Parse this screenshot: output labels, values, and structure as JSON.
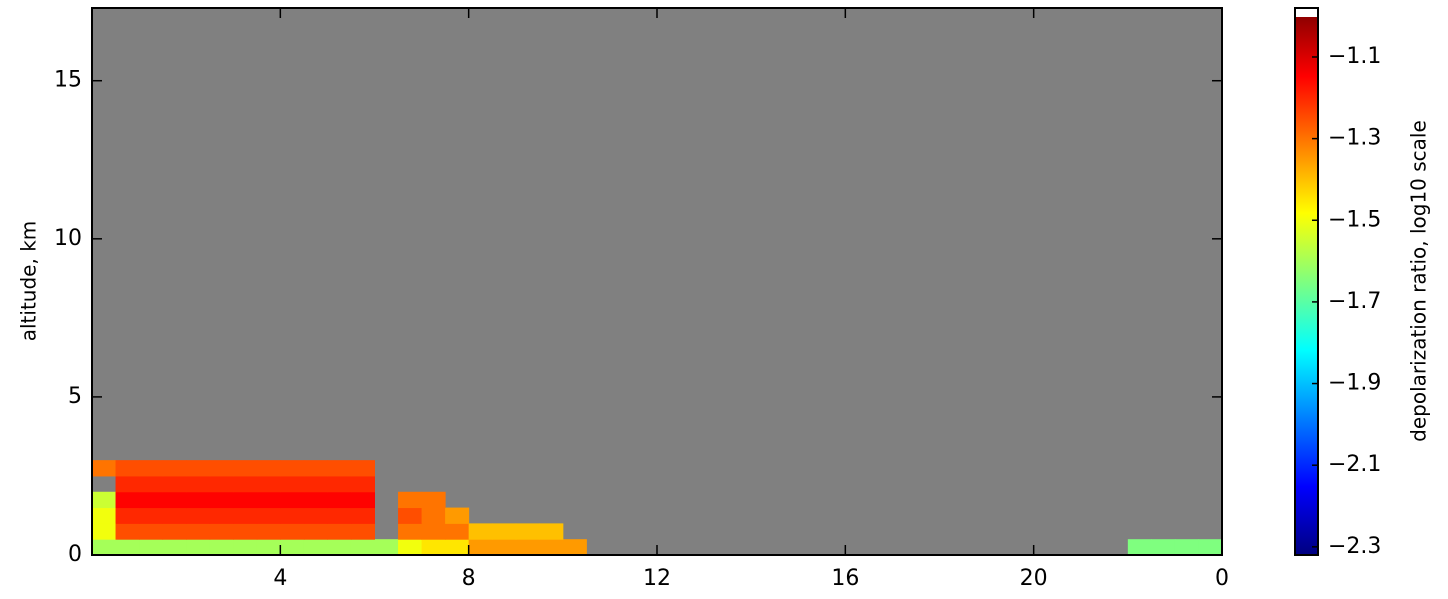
{
  "chart_data": {
    "type": "heatmap",
    "ylabel": "altitude, km",
    "colorbar_label": "depolarization ratio, log10 scale",
    "x_edges": [
      0,
      0.5,
      1,
      1.5,
      2,
      2.5,
      3,
      3.5,
      4,
      4.5,
      5,
      5.5,
      6,
      6.5,
      7,
      7.5,
      8,
      8.5,
      9,
      9.5,
      10,
      10.5,
      11,
      11.5,
      12,
      12.5,
      13,
      13.5,
      14,
      14.5,
      15,
      15.5,
      16,
      16.5,
      17,
      17.5,
      18,
      18.5,
      19,
      19.5,
      20,
      20.5,
      21,
      21.5,
      22,
      22.5,
      23,
      23.5,
      24
    ],
    "y_edges": [
      0,
      0.5,
      1,
      1.5,
      2,
      2.5,
      3
    ],
    "z": [
      [
        -1.6,
        -1.6,
        -1.6,
        -1.6,
        -1.6,
        -1.6,
        -1.6,
        -1.6,
        -1.6,
        -1.6,
        -1.6,
        -1.6,
        -1.6,
        -1.5,
        -1.45,
        -1.45,
        -1.35,
        -1.35,
        -1.35,
        -1.35,
        -1.35,
        null,
        null,
        null,
        null,
        null,
        null,
        null,
        null,
        null,
        null,
        null,
        null,
        null,
        null,
        null,
        null,
        null,
        null,
        null,
        null,
        null,
        null,
        null,
        -1.65,
        -1.65,
        -1.65,
        -1.65
      ],
      [
        -1.5,
        -1.25,
        -1.25,
        -1.25,
        -1.25,
        -1.25,
        -1.25,
        -1.25,
        -1.25,
        -1.25,
        -1.25,
        -1.25,
        null,
        -1.3,
        -1.3,
        -1.3,
        -1.4,
        -1.4,
        -1.4,
        -1.4,
        null,
        null,
        null,
        null,
        null,
        null,
        null,
        null,
        null,
        null,
        null,
        null,
        null,
        null,
        null,
        null,
        null,
        null,
        null,
        null,
        null,
        null,
        null,
        null,
        null,
        null,
        null,
        null
      ],
      [
        -1.5,
        -1.2,
        -1.2,
        -1.2,
        -1.2,
        -1.2,
        -1.2,
        -1.2,
        -1.2,
        -1.2,
        -1.2,
        -1.2,
        null,
        -1.25,
        -1.3,
        -1.35,
        null,
        null,
        null,
        null,
        null,
        null,
        null,
        null,
        null,
        null,
        null,
        null,
        null,
        null,
        null,
        null,
        null,
        null,
        null,
        null,
        null,
        null,
        null,
        null,
        null,
        null,
        null,
        null,
        null,
        null,
        null,
        null
      ],
      [
        -1.55,
        -1.15,
        -1.15,
        -1.15,
        -1.15,
        -1.15,
        -1.15,
        -1.15,
        -1.15,
        -1.15,
        -1.15,
        -1.15,
        null,
        -1.3,
        -1.3,
        null,
        null,
        null,
        null,
        null,
        null,
        null,
        null,
        null,
        null,
        null,
        null,
        null,
        null,
        null,
        null,
        null,
        null,
        null,
        null,
        null,
        null,
        null,
        null,
        null,
        null,
        null,
        null,
        null,
        null,
        null,
        null,
        null
      ],
      [
        null,
        -1.2,
        -1.2,
        -1.2,
        -1.2,
        -1.2,
        -1.2,
        -1.2,
        -1.2,
        -1.2,
        -1.2,
        -1.2,
        null,
        null,
        null,
        null,
        null,
        null,
        null,
        null,
        null,
        null,
        null,
        null,
        null,
        null,
        null,
        null,
        null,
        null,
        null,
        null,
        null,
        null,
        null,
        null,
        null,
        null,
        null,
        null,
        null,
        null,
        null,
        null,
        null,
        null,
        null,
        null
      ],
      [
        -1.3,
        -1.25,
        -1.25,
        -1.25,
        -1.25,
        -1.25,
        -1.25,
        -1.25,
        -1.25,
        -1.25,
        -1.25,
        -1.25,
        null,
        null,
        null,
        null,
        null,
        null,
        null,
        null,
        null,
        null,
        null,
        null,
        null,
        null,
        null,
        null,
        null,
        null,
        null,
        null,
        null,
        null,
        null,
        null,
        null,
        null,
        null,
        null,
        null,
        null,
        null,
        null,
        null,
        null,
        null,
        null
      ]
    ],
    "xlim": [
      0,
      24
    ],
    "ylim": [
      0,
      17.3
    ],
    "xticks": [
      4,
      8,
      12,
      16,
      20,
      {
        "value": 24,
        "label": "0"
      }
    ],
    "yticks": [
      0,
      5,
      10,
      15
    ],
    "clim": [
      -2.32,
      -0.98
    ],
    "cticks": [
      {
        "value": -1.1,
        "label": "−1.1"
      },
      {
        "value": -1.3,
        "label": "−1.3"
      },
      {
        "value": -1.5,
        "label": "−1.5"
      },
      {
        "value": -1.7,
        "label": "−1.7"
      },
      {
        "value": -1.9,
        "label": "−1.9"
      },
      {
        "value": -2.1,
        "label": "−2.1"
      },
      {
        "value": -2.3,
        "label": "−2.3"
      }
    ],
    "background": "#808080",
    "colorscale": [
      "#00007f",
      "#0000ff",
      "#007fff",
      "#00ffff",
      "#7fff7f",
      "#ffff00",
      "#ff7f00",
      "#ff0000",
      "#7f0000"
    ]
  }
}
